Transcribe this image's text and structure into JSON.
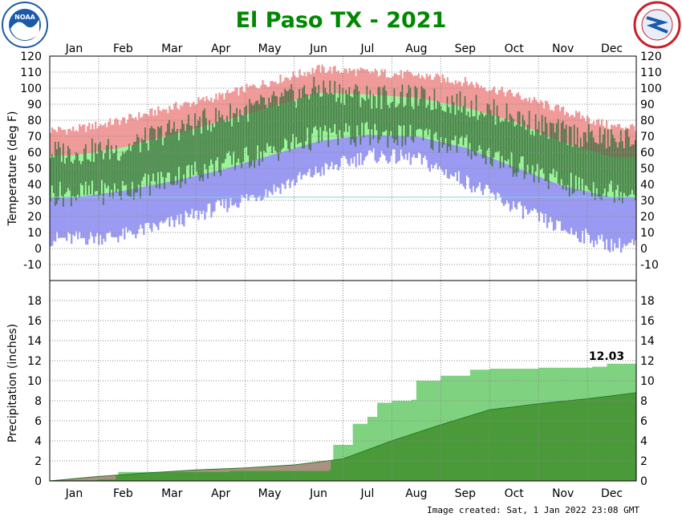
{
  "colors": {
    "title": "#008800",
    "record_high": "#f09a9a",
    "record_low": "#9a9af2",
    "normal_band": "#9af59a",
    "actual_bar": "#3c6e3c",
    "freezing_line": "#7fd4d4",
    "normal_precip": "#4a9a3a",
    "actual_precip": "#7fd27f",
    "precip_deficit": "#a99280",
    "grid": "#888888",
    "noaa_blue": "#1b5aa8",
    "nws_red": "#c8202a"
  },
  "logos": {
    "left": {
      "icon": "noaa-logo",
      "text": "NOAA"
    },
    "right": {
      "icon": "nws-logo",
      "text": "NATIONAL WEATHER SERVICE"
    }
  },
  "chart_data": {
    "title": "El Paso TX - 2021",
    "months": [
      "Jan",
      "Feb",
      "Mar",
      "Apr",
      "May",
      "Jun",
      "Jul",
      "Aug",
      "Sep",
      "Oct",
      "Nov",
      "Dec"
    ],
    "footer": "Image created: Sat, 1 Jan 2022 23:08 GMT",
    "temperature": {
      "type": "bar",
      "ylabel": "Temperature (deg F)",
      "ylim": [
        -20,
        120
      ],
      "yticks": [
        -10,
        0,
        10,
        20,
        30,
        40,
        50,
        60,
        70,
        80,
        90,
        100,
        110,
        120
      ],
      "freezing_line": 32,
      "grid": true,
      "record_high_monthly": [
        74,
        80,
        88,
        95,
        104,
        112,
        110,
        108,
        104,
        96,
        86,
        76
      ],
      "normal_high_monthly": [
        58,
        63,
        71,
        79,
        88,
        97,
        96,
        94,
        88,
        79,
        66,
        57
      ],
      "normal_low_monthly": [
        32,
        36,
        42,
        49,
        58,
        67,
        71,
        70,
        63,
        51,
        39,
        32
      ],
      "record_low_monthly": [
        6,
        8,
        16,
        26,
        36,
        48,
        58,
        56,
        42,
        26,
        12,
        2
      ],
      "actual_high_monthly": [
        60,
        62,
        74,
        82,
        90,
        100,
        95,
        94,
        90,
        82,
        72,
        68
      ],
      "actual_low_monthly": [
        34,
        36,
        44,
        52,
        60,
        70,
        71,
        70,
        64,
        52,
        40,
        36
      ]
    },
    "precipitation": {
      "type": "area",
      "ylabel": "Precipitation (inches)",
      "ylim": [
        0,
        20
      ],
      "yticks": [
        0,
        2,
        4,
        6,
        8,
        10,
        12,
        14,
        16,
        18
      ],
      "grid": true,
      "total_label": "12.03",
      "normal_cumulative_month_end": [
        0.45,
        0.8,
        1.1,
        1.3,
        1.6,
        2.2,
        4.0,
        5.6,
        7.1,
        7.7,
        8.2,
        8.8
      ],
      "actual_cumulative_points": [
        [
          0,
          0.05
        ],
        [
          1.0,
          0.15
        ],
        [
          1.4,
          0.9
        ],
        [
          3.0,
          0.9
        ],
        [
          3.7,
          1.0
        ],
        [
          5.7,
          1.1
        ],
        [
          5.8,
          3.6
        ],
        [
          6.2,
          5.7
        ],
        [
          6.5,
          6.4
        ],
        [
          6.7,
          7.8
        ],
        [
          7.0,
          8.0
        ],
        [
          7.4,
          8.1
        ],
        [
          7.5,
          10.0
        ],
        [
          8.0,
          10.5
        ],
        [
          8.6,
          11.1
        ],
        [
          9.0,
          11.2
        ],
        [
          10.0,
          11.3
        ],
        [
          11.0,
          11.3
        ],
        [
          11.1,
          11.4
        ],
        [
          11.4,
          11.7
        ],
        [
          12.0,
          12.03
        ]
      ]
    }
  }
}
